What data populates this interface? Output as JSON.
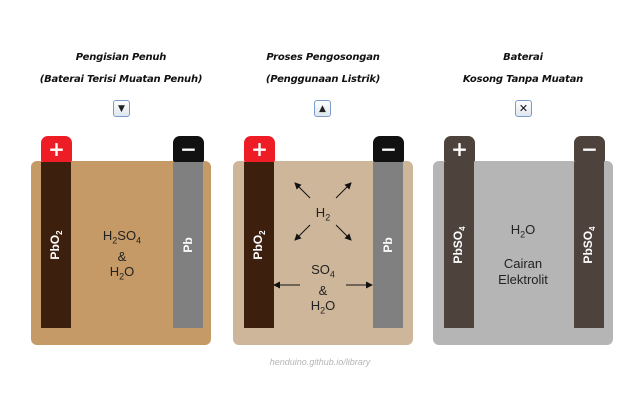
{
  "panels": [
    {
      "title_line1": "Pengisian Penuh",
      "title_line2": "(Baterai Terisi Muatan Penuh)",
      "button_icon": "triangle-down-icon",
      "button_glyph": "▼",
      "positive_terminal": "+",
      "negative_terminal": "−",
      "left_plate": {
        "base": "PbO",
        "sub": "2"
      },
      "right_plate": {
        "base": "Pb"
      },
      "electrolyte": {
        "h2so4_h2": "H",
        "h2so4_sub2": "2",
        "h2so4_so": "SO",
        "h2so4_sub4": "4",
        "amp": "&",
        "h2o_h": "H",
        "h2o_sub": "2",
        "h2o_o": "O"
      },
      "color": "#c59a67"
    },
    {
      "title_line1": "Proses Pengosongan",
      "title_line2": "(Penggunaan Listrik)",
      "button_icon": "triangle-up-icon",
      "button_glyph": "▲",
      "positive_terminal": "+",
      "negative_terminal": "−",
      "left_plate": {
        "base": "PbO",
        "sub": "2"
      },
      "right_plate": {
        "base": "Pb"
      },
      "gas": {
        "h": "H",
        "sub": "2"
      },
      "electrolyte": {
        "so": "SO",
        "so_sub": "4",
        "amp": "&",
        "h2o_h": "H",
        "h2o_sub": "2",
        "h2o_o": "O"
      },
      "color": "#ceb69a"
    },
    {
      "title_line1": "Baterai",
      "title_line2": "Kosong Tanpa Muatan",
      "button_icon": "close-icon",
      "button_glyph": "✕",
      "positive_terminal": "+",
      "negative_terminal": "−",
      "left_plate": {
        "base": "PbSO",
        "sub": "4"
      },
      "right_plate": {
        "base": "PbSO",
        "sub": "4"
      },
      "electrolyte": {
        "h2o_h": "H",
        "h2o_sub": "2",
        "h2o_o": "O",
        "line1": "Cairan",
        "line2": "Elektrolit"
      },
      "color": "#b5b5b5"
    }
  ],
  "credit": "henduino.github.io/library"
}
